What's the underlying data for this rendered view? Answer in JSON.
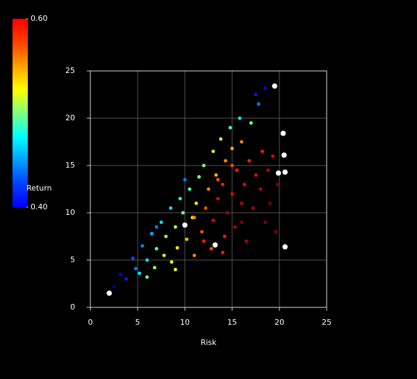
{
  "chart_data": {
    "type": "scatter",
    "x_label": "Risk",
    "y_label": "Return",
    "xlim": [
      0,
      25
    ],
    "ylim": [
      0,
      25
    ],
    "xticks": [
      0,
      5,
      10,
      15,
      20,
      25
    ],
    "yticks": [
      0,
      5,
      10,
      15,
      20,
      25
    ],
    "grid": true,
    "colorlim": [
      0.4,
      0.6
    ],
    "colorticks": [
      {
        "value": 0.4,
        "label": "0.40"
      },
      {
        "value": 0.6,
        "label": "0.60"
      }
    ],
    "series": [
      {
        "x": [
          2.5,
          3.2,
          3.8,
          4.5,
          4.8,
          5.5,
          5.2,
          6,
          6.5,
          6.8,
          7,
          7.5,
          7.8,
          8,
          8.5,
          8.6,
          9,
          9.2,
          9.5,
          9.8,
          10.2,
          10.5,
          10.8,
          11,
          11.2,
          11.5,
          11.8,
          12,
          12.2,
          12.5,
          12.8,
          13,
          13,
          13.3,
          13.5,
          13.8,
          14,
          14.2,
          14.3,
          14.5,
          14.8,
          15,
          15,
          15.3,
          15.5,
          15.8,
          16,
          16,
          16.3,
          16.5,
          16.8,
          17,
          17.2,
          17.5,
          17.8,
          18,
          18.2,
          18.5,
          18.8,
          19,
          19.3,
          19.6,
          19.8,
          17.5,
          18.5,
          10,
          7,
          12,
          14,
          16,
          11,
          13.5,
          15,
          9,
          6
        ],
        "values": [
          2.2,
          3.5,
          3,
          5.2,
          4.1,
          6.5,
          3.6,
          5,
          7.8,
          4.2,
          6.2,
          9,
          5.5,
          7.5,
          10.5,
          4.8,
          8.5,
          6.3,
          11.5,
          10,
          7.2,
          12.5,
          9.5,
          5.5,
          11,
          13.8,
          8,
          15,
          10.5,
          12.5,
          6.2,
          16.5,
          9.2,
          14,
          11.5,
          17.8,
          13,
          7.5,
          15.5,
          10,
          19,
          12,
          16.8,
          8.5,
          14.5,
          20,
          11,
          17.5,
          13,
          7,
          15.5,
          19.5,
          10.5,
          14,
          21.5,
          12.5,
          16.5,
          9,
          14.5,
          11,
          16,
          8,
          13,
          22.5,
          23.2,
          13.5,
          8.5,
          7,
          5.8,
          9,
          9.5,
          13.5,
          15,
          4,
          3.2
        ],
        "color_values": [
          0.41,
          0.42,
          0.43,
          0.44,
          0.45,
          0.45,
          0.47,
          0.47,
          0.46,
          0.5,
          0.49,
          0.47,
          0.51,
          0.5,
          0.47,
          0.52,
          0.51,
          0.53,
          0.48,
          0.5,
          0.54,
          0.49,
          0.53,
          0.55,
          0.53,
          0.5,
          0.56,
          0.5,
          0.56,
          0.55,
          0.56,
          0.51,
          0.58,
          0.54,
          0.58,
          0.51,
          0.57,
          0.57,
          0.55,
          0.59,
          0.49,
          0.58,
          0.54,
          0.59,
          0.57,
          0.47,
          0.59,
          0.55,
          0.58,
          0.59,
          0.57,
          0.5,
          0.59,
          0.58,
          0.45,
          0.59,
          0.57,
          0.6,
          0.59,
          0.6,
          0.58,
          0.6,
          0.6,
          0.43,
          0.42,
          0.45,
          0.45,
          0.57,
          0.57,
          0.6,
          0.55,
          0.56,
          0.56,
          0.52,
          0.5
        ]
      },
      {
        "color": "#ffffff",
        "x": [
          2,
          10,
          13.2,
          19.5,
          20.4,
          20.5,
          19.9,
          20.6,
          20.6
        ],
        "values": [
          1.5,
          8.7,
          6.6,
          23.4,
          18.4,
          16.1,
          14.2,
          14.3,
          6.4
        ]
      }
    ]
  }
}
